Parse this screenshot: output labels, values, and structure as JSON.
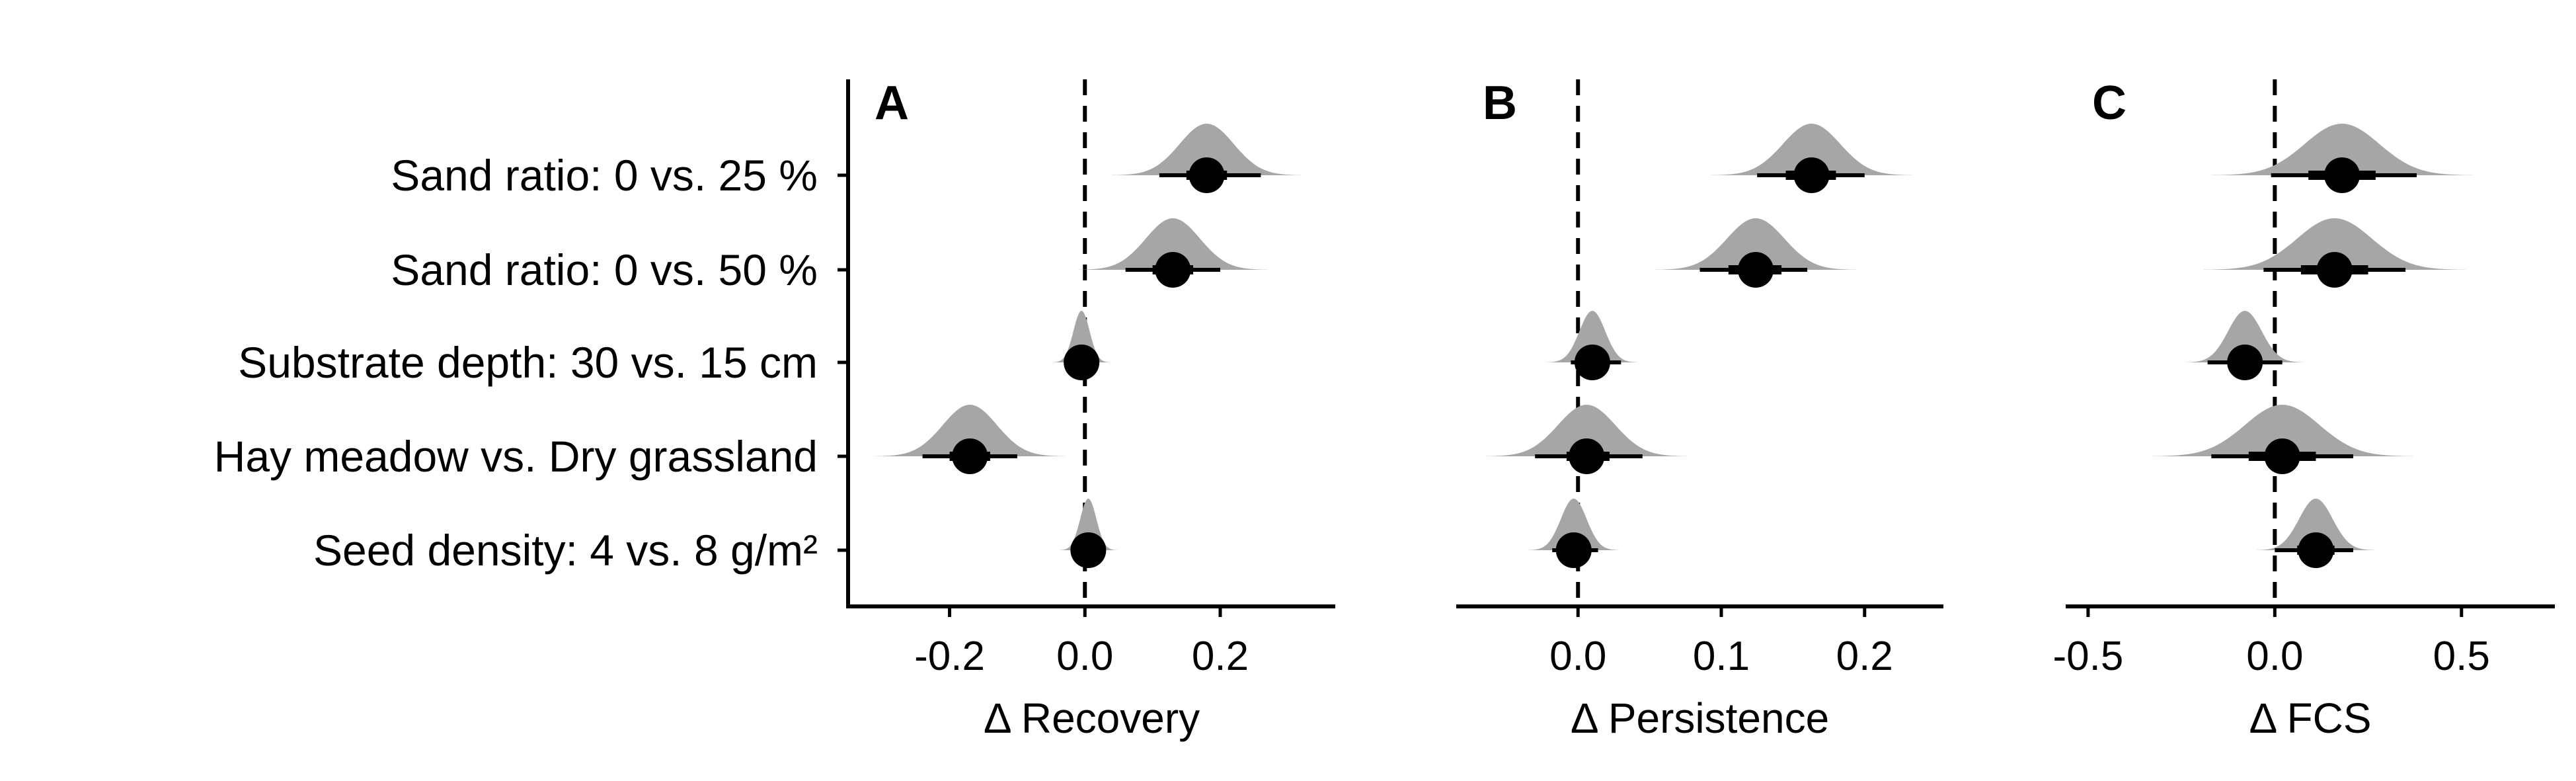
{
  "chart_data": [
    {
      "panel": "A",
      "type": "interval",
      "categories": [
        "Sand ratio: 0 vs. 25 %",
        "Sand ratio: 0 vs. 50 %",
        "Substrate depth: 30 vs. 15 cm",
        "Hay meadow vs. Dry grassland",
        "Seed density: 4 vs. 8 g/m²"
      ],
      "xlabel": "Δ Recovery",
      "xlim": [
        -0.35,
        0.37
      ],
      "xticks": [
        -0.2,
        0.0,
        0.2
      ],
      "tick_labels": [
        "-0.2",
        "0.0",
        "0.2"
      ],
      "reference_line": 0,
      "estimates": [
        0.18,
        0.13,
        -0.005,
        -0.17,
        0.005
      ],
      "interval_66": [
        [
          0.15,
          0.21
        ],
        [
          0.1,
          0.16
        ],
        [
          -0.012,
          0.003
        ],
        [
          -0.2,
          -0.14
        ],
        [
          -0.003,
          0.013
        ]
      ],
      "interval_95": [
        [
          0.11,
          0.26
        ],
        [
          0.06,
          0.2
        ],
        [
          -0.028,
          0.018
        ],
        [
          -0.24,
          -0.1
        ],
        [
          -0.02,
          0.03
        ]
      ],
      "density_sd": [
        0.04,
        0.04,
        0.012,
        0.04,
        0.012
      ]
    },
    {
      "panel": "B",
      "type": "interval",
      "categories": [
        "Sand ratio: 0 vs. 25 %",
        "Sand ratio: 0 vs. 50 %",
        "Substrate depth: 30 vs. 15 cm",
        "Hay meadow vs. Dry grassland",
        "Seed density: 4 vs. 8 g/m²"
      ],
      "xlabel": "Δ Persistence",
      "xlim": [
        -0.085,
        0.255
      ],
      "xticks": [
        0.0,
        0.1,
        0.2
      ],
      "tick_labels": [
        "0.0",
        "0.1",
        "0.2"
      ],
      "reference_line": 0,
      "estimates": [
        0.163,
        0.124,
        0.01,
        0.006,
        -0.003
      ],
      "interval_66": [
        [
          0.145,
          0.18
        ],
        [
          0.105,
          0.142
        ],
        [
          0.002,
          0.02
        ],
        [
          -0.008,
          0.022
        ],
        [
          -0.01,
          0.005
        ]
      ],
      "interval_95": [
        [
          0.125,
          0.2
        ],
        [
          0.085,
          0.16
        ],
        [
          -0.005,
          0.03
        ],
        [
          -0.03,
          0.045
        ],
        [
          -0.018,
          0.014
        ]
      ],
      "density_sd": [
        0.02,
        0.02,
        0.009,
        0.02,
        0.009
      ]
    },
    {
      "panel": "C",
      "type": "interval",
      "categories": [
        "Sand ratio: 0 vs. 25 %",
        "Sand ratio: 0 vs. 50 %",
        "Substrate depth: 30 vs. 15 cm",
        "Hay meadow vs. Dry grassland",
        "Seed density: 4 vs. 8 g/m²"
      ],
      "xlabel": "Δ FCS",
      "xlim": [
        -0.56,
        0.75
      ],
      "xticks": [
        -0.5,
        0.0,
        0.5
      ],
      "tick_labels": [
        "-0.5",
        "0.0",
        "0.5"
      ],
      "reference_line": 0,
      "estimates": [
        0.18,
        0.16,
        -0.08,
        0.02,
        0.11
      ],
      "interval_66": [
        [
          0.09,
          0.27
        ],
        [
          0.07,
          0.25
        ],
        [
          -0.12,
          -0.04
        ],
        [
          -0.07,
          0.11
        ],
        [
          0.06,
          0.16
        ]
      ],
      "interval_95": [
        [
          -0.01,
          0.38
        ],
        [
          -0.03,
          0.35
        ],
        [
          -0.18,
          0.02
        ],
        [
          -0.17,
          0.21
        ],
        [
          0.0,
          0.21
        ]
      ],
      "density_sd": [
        0.1,
        0.1,
        0.045,
        0.1,
        0.045
      ]
    }
  ]
}
